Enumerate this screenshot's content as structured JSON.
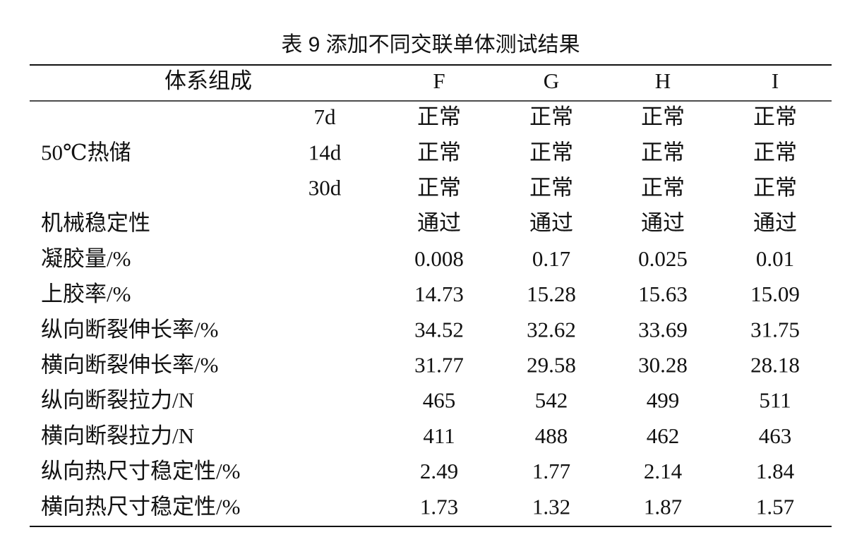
{
  "title": "表 9  添加不同交联单体测试结果",
  "table": {
    "header": [
      "体系组成",
      "F",
      "G",
      "H",
      "I"
    ],
    "group": {
      "label": "50℃热储",
      "rows": [
        [
          "7d",
          "正常",
          "正常",
          "正常",
          "正常"
        ],
        [
          "14d",
          "正常",
          "正常",
          "正常",
          "正常"
        ],
        [
          "30d",
          "正常",
          "正常",
          "正常",
          "正常"
        ]
      ]
    },
    "rows": [
      [
        "机械稳定性",
        "通过",
        "通过",
        "通过",
        "通过"
      ],
      [
        "凝胶量/%",
        "0.008",
        "0.17",
        "0.025",
        "0.01"
      ],
      [
        "上胶率/%",
        "14.73",
        "15.28",
        "15.63",
        "15.09"
      ],
      [
        "纵向断裂伸长率/%",
        "34.52",
        "32.62",
        "33.69",
        "31.75"
      ],
      [
        "横向断裂伸长率/%",
        "31.77",
        "29.58",
        "30.28",
        "28.18"
      ],
      [
        "纵向断裂拉力/N",
        "465",
        "542",
        "499",
        "511"
      ],
      [
        "横向断裂拉力/N",
        "411",
        "488",
        "462",
        "463"
      ],
      [
        "纵向热尺寸稳定性/%",
        "2.49",
        "1.77",
        "2.14",
        "1.84"
      ],
      [
        "横向热尺寸稳定性/%",
        "1.73",
        "1.32",
        "1.87",
        "1.57"
      ]
    ]
  }
}
